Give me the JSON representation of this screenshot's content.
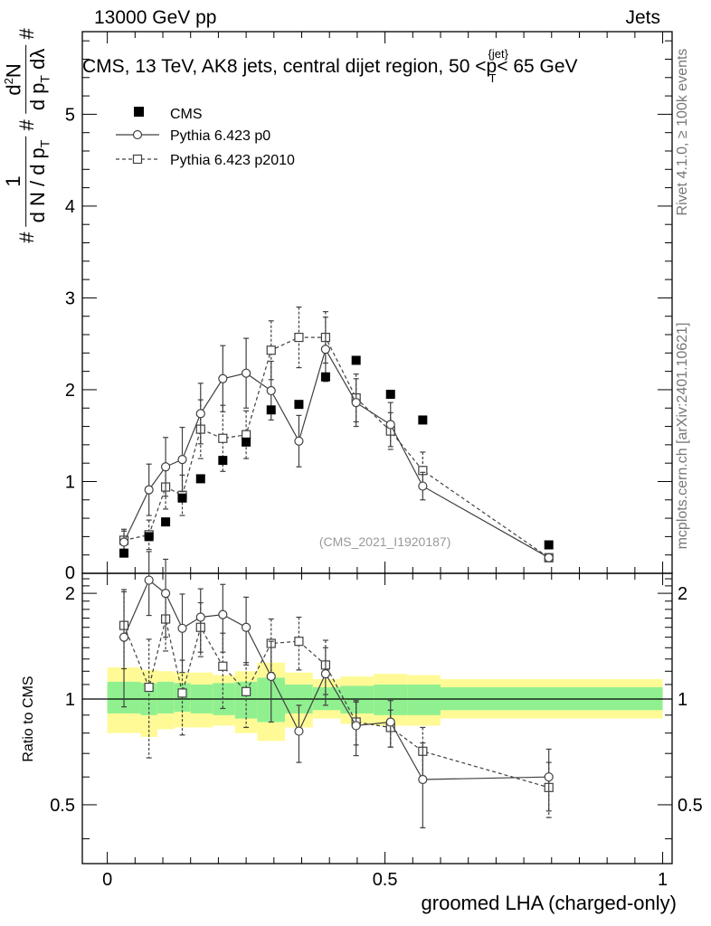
{
  "header": {
    "left": "13000 GeV pp",
    "right": "Jets"
  },
  "chart_data": [
    {
      "type": "scatter",
      "panel": "main",
      "title": "CMS, 13 TeV, AK8 jets, central dijet region, 50 <",
      "title_sym": "p",
      "title_sup": "{jet}",
      "title_sub": "T",
      "title_tail": "< 65 GeV",
      "ylabel_parts": [
        "#",
        "1",
        "d N / d p",
        "T",
        "#",
        "d p",
        "T",
        "d",
        "2",
        "N",
        "d",
        "λ",
        "#"
      ],
      "xlim": [
        -0.045,
        1.017
      ],
      "ylim": [
        0,
        5.9
      ],
      "yticks": [
        "1",
        "2",
        "3",
        "4",
        "5"
      ],
      "ytick_values": [
        1,
        2,
        3,
        4,
        5
      ],
      "watermark": "(CMS_2021_I1920187)",
      "legend": [
        "CMS",
        "Pythia 6.423 p0",
        "Pythia 6.423 p2010"
      ],
      "series": [
        {
          "name": "CMS",
          "x": [
            0.03,
            0.075,
            0.105,
            0.135,
            0.168,
            0.208,
            0.25,
            0.295,
            0.345,
            0.393,
            0.448,
            0.51,
            0.568,
            0.795
          ],
          "y": [
            0.22,
            0.4,
            0.56,
            0.82,
            1.03,
            1.23,
            1.43,
            1.78,
            1.84,
            2.14,
            2.32,
            1.95,
            1.67,
            0.31
          ]
        },
        {
          "name": "Pythia 6.423 p0",
          "x": [
            0.03,
            0.075,
            0.105,
            0.135,
            0.168,
            0.208,
            0.25,
            0.295,
            0.345,
            0.393,
            0.448,
            0.51,
            0.568,
            0.795
          ],
          "y": [
            0.34,
            0.91,
            1.16,
            1.24,
            1.74,
            2.12,
            2.18,
            1.99,
            1.44,
            2.44,
            1.86,
            1.62,
            0.95,
            0.17
          ],
          "err": [
            0.12,
            0.28,
            0.32,
            0.35,
            0.33,
            0.36,
            0.38,
            0.32,
            0.28,
            0.35,
            0.26,
            0.24,
            0.15,
            0.04
          ]
        },
        {
          "name": "Pythia 6.423 p2010",
          "x": [
            0.03,
            0.075,
            0.105,
            0.135,
            0.168,
            0.208,
            0.25,
            0.295,
            0.345,
            0.393,
            0.448,
            0.51,
            0.568,
            0.795
          ],
          "y": [
            0.36,
            0.42,
            0.94,
            0.85,
            1.57,
            1.47,
            1.51,
            2.43,
            2.57,
            2.57,
            1.91,
            1.55,
            1.12,
            0.17
          ],
          "err": [
            0.12,
            0.16,
            0.24,
            0.22,
            0.32,
            0.36,
            0.26,
            0.32,
            0.33,
            0.28,
            0.26,
            0.2,
            0.2,
            0.04
          ]
        }
      ]
    },
    {
      "type": "line",
      "panel": "ratio",
      "ylabel": "Ratio to CMS",
      "xlabel": "groomed LHA (charged-only)",
      "xlim": [
        -0.045,
        1.017
      ],
      "ylim": [
        0.34,
        2.28
      ],
      "xticks": [
        "0",
        "0.5",
        "1"
      ],
      "xtick_values": [
        0,
        0.5,
        1
      ],
      "yticks": [
        "0.5",
        "1",
        "2"
      ],
      "ytick_values": [
        0.5,
        1,
        2
      ],
      "band_edges": [
        0.0,
        0.06,
        0.09,
        0.12,
        0.15,
        0.19,
        0.23,
        0.27,
        0.32,
        0.37,
        0.42,
        0.48,
        0.54,
        0.6,
        1.0
      ],
      "band_inner": [
        [
          0.91,
          1.12
        ],
        [
          0.9,
          1.11
        ],
        [
          0.91,
          1.12
        ],
        [
          0.92,
          1.11
        ],
        [
          0.91,
          1.1
        ],
        [
          0.9,
          1.11
        ],
        [
          0.88,
          1.12
        ],
        [
          0.86,
          1.15
        ],
        [
          0.91,
          1.1
        ],
        [
          0.93,
          1.08
        ],
        [
          0.91,
          1.09
        ],
        [
          0.9,
          1.1
        ],
        [
          0.9,
          1.1
        ],
        [
          0.93,
          1.08
        ]
      ],
      "band_outer": [
        [
          0.8,
          1.23
        ],
        [
          0.78,
          1.21
        ],
        [
          0.82,
          1.2
        ],
        [
          0.83,
          1.19
        ],
        [
          0.83,
          1.19
        ],
        [
          0.84,
          1.17
        ],
        [
          0.8,
          1.2
        ],
        [
          0.76,
          1.27
        ],
        [
          0.83,
          1.19
        ],
        [
          0.88,
          1.14
        ],
        [
          0.85,
          1.16
        ],
        [
          0.84,
          1.18
        ],
        [
          0.84,
          1.17
        ],
        [
          0.88,
          1.14
        ]
      ],
      "series": [
        {
          "name": "Pythia 6.423 p0",
          "x": [
            0.03,
            0.075,
            0.105,
            0.135,
            0.168,
            0.208,
            0.25,
            0.295,
            0.345,
            0.393,
            0.448,
            0.51,
            0.568,
            0.795
          ],
          "y": [
            1.5,
            2.18,
            2.0,
            1.59,
            1.71,
            1.74,
            1.6,
            1.16,
            0.81,
            1.18,
            0.84,
            0.86,
            0.59,
            0.6
          ],
          "err": [
            0.55,
            0.45,
            0.5,
            0.4,
            0.35,
            0.38,
            0.35,
            0.3,
            0.15,
            0.22,
            0.15,
            0.13,
            0.16,
            0.12
          ]
        },
        {
          "name": "Pythia 6.423 p2010",
          "x": [
            0.03,
            0.075,
            0.105,
            0.135,
            0.168,
            0.208,
            0.25,
            0.295,
            0.345,
            0.393,
            0.448,
            0.51,
            0.568,
            0.795
          ],
          "y": [
            1.62,
            1.08,
            1.69,
            1.04,
            1.6,
            1.24,
            1.05,
            1.44,
            1.46,
            1.25,
            0.86,
            0.83,
            0.71,
            0.56
          ],
          "err": [
            0.4,
            0.4,
            0.32,
            0.25,
            0.28,
            0.3,
            0.22,
            0.25,
            0.25,
            0.22,
            0.12,
            0.1,
            0.12,
            0.1
          ]
        }
      ]
    }
  ],
  "side_labels": {
    "top": "Rivet 4.1.0, ≥ 100k events",
    "bottom": "mcplots.cern.ch [arXiv:2401.10621]"
  },
  "colors": {
    "band_inner": "#90f090",
    "band_outer": "#fffa96",
    "line": "#404040"
  }
}
